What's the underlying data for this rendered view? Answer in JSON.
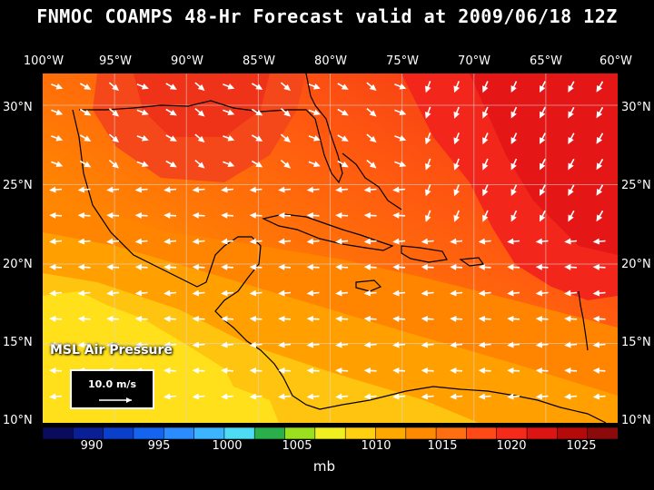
{
  "title": "FNMOC COAMPS 48-Hr Forecast valid at 2009/06/18 12Z",
  "lon_labels": [
    "100°W",
    "95°W",
    "90°W",
    "85°W",
    "80°W",
    "75°W",
    "70°W",
    "65°W",
    "60°W"
  ],
  "lat_labels": [
    "30°N",
    "25°N",
    "20°N",
    "15°N",
    "10°N"
  ],
  "field_label": "MSL Air Pressure",
  "wind_scale": {
    "label": "10.0 m/s"
  },
  "colorbar": {
    "unit": "mb",
    "tick_labels": [
      "990",
      "995",
      "1000",
      "1005",
      "1010",
      "1015",
      "1020",
      "1025"
    ],
    "colors": [
      "#0b0b5e",
      "#0a1f96",
      "#0a3fcc",
      "#1464f0",
      "#2a8cff",
      "#3cb4ff",
      "#4edcf5",
      "#2ab04a",
      "#9be01e",
      "#f0f020",
      "#ffcf10",
      "#ffa800",
      "#ff8a00",
      "#ff6e10",
      "#ff4a18",
      "#f52a1a",
      "#dc1414",
      "#b40a0a",
      "#8c0a0a"
    ]
  },
  "map": {
    "lon_range": [
      -100,
      -60
    ],
    "lat_range": [
      10,
      32
    ]
  }
}
